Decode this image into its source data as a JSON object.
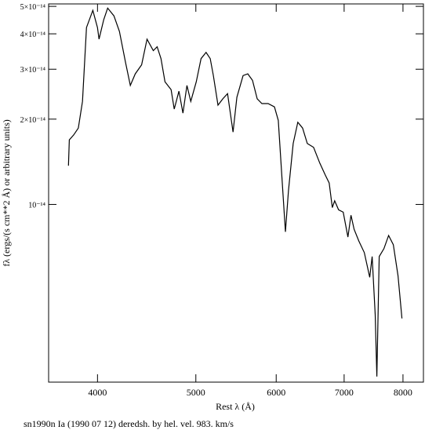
{
  "chart_data": {
    "type": "line",
    "title": "sn1990n Ia (1990 07 12) deredsh. by hel. vel.   983. km/s",
    "x_label": "Rest λ (Å)",
    "y_label": "fλ (ergs/(s cm**2 Å) or arbitrary units)",
    "x_scale": "log",
    "y_scale": "log",
    "color": "#000000",
    "xlim": [
      3580,
      8380
    ],
    "ylim": [
      2.36e-15,
      5.1e-14
    ],
    "xticks": [
      4000,
      5000,
      6000,
      7000,
      8000
    ],
    "yticks": [
      {
        "value": 1e-14,
        "label": "10⁻¹⁴"
      },
      {
        "value": 2e-14,
        "label": "2×10⁻¹⁴"
      },
      {
        "value": 3e-14,
        "label": "3×10⁻¹⁴"
      },
      {
        "value": 4e-14,
        "label": "4×10⁻¹⁴"
      },
      {
        "value": 5e-14,
        "label": "5×10⁻¹⁴"
      }
    ],
    "x": [
      3745,
      3752,
      3790,
      3830,
      3866,
      3901,
      3958,
      4000,
      4014,
      4057,
      4093,
      4152,
      4204,
      4263,
      4309,
      4358,
      4421,
      4476,
      4540,
      4580,
      4620,
      4662,
      4727,
      4761,
      4812,
      4856,
      4900,
      4943,
      5005,
      5059,
      5117,
      5166,
      5203,
      5258,
      5316,
      5373,
      5440,
      5488,
      5566,
      5625,
      5686,
      5747,
      5808,
      5891,
      5976,
      6029,
      6083,
      6127,
      6170,
      6236,
      6302,
      6370,
      6439,
      6531,
      6624,
      6706,
      6766,
      6815,
      6851,
      6912,
      6985,
      7060,
      7110,
      7161,
      7237,
      7328,
      7419,
      7459,
      7512,
      7540,
      7580,
      7661,
      7743,
      7826,
      7910,
      7981
    ],
    "values": [
      1.37e-14,
      1.69e-14,
      1.76e-14,
      1.86e-14,
      2.31e-14,
      4.21e-14,
      4.84e-14,
      4.21e-14,
      3.83e-14,
      4.49e-14,
      4.93e-14,
      4.63e-14,
      4.08e-14,
      3.17e-14,
      2.63e-14,
      2.89e-14,
      3.11e-14,
      3.83e-14,
      3.49e-14,
      3.6e-14,
      3.27e-14,
      2.71e-14,
      2.54e-14,
      2.17e-14,
      2.51e-14,
      2.1e-14,
      2.63e-14,
      2.31e-14,
      2.71e-14,
      3.27e-14,
      3.44e-14,
      3.27e-14,
      2.85e-14,
      2.24e-14,
      2.36e-14,
      2.46e-14,
      1.8e-14,
      2.39e-14,
      2.85e-14,
      2.89e-14,
      2.74e-14,
      2.36e-14,
      2.27e-14,
      2.27e-14,
      2.21e-14,
      1.98e-14,
      1.19e-14,
      8e-15,
      1.12e-14,
      1.64e-14,
      1.95e-14,
      1.86e-14,
      1.64e-14,
      1.59e-14,
      1.4e-14,
      1.27e-14,
      1.19e-14,
      9.75e-15,
      1.03e-14,
      9.57e-15,
      9.39e-15,
      7.67e-15,
      9.16e-15,
      8.17e-15,
      7.43e-15,
      6.76e-15,
      5.53e-15,
      6.55e-15,
      4.08e-15,
      2.47e-15,
      6.55e-15,
      6.98e-15,
      7.77e-15,
      7.21e-15,
      5.6e-15,
      3.96e-15
    ]
  }
}
